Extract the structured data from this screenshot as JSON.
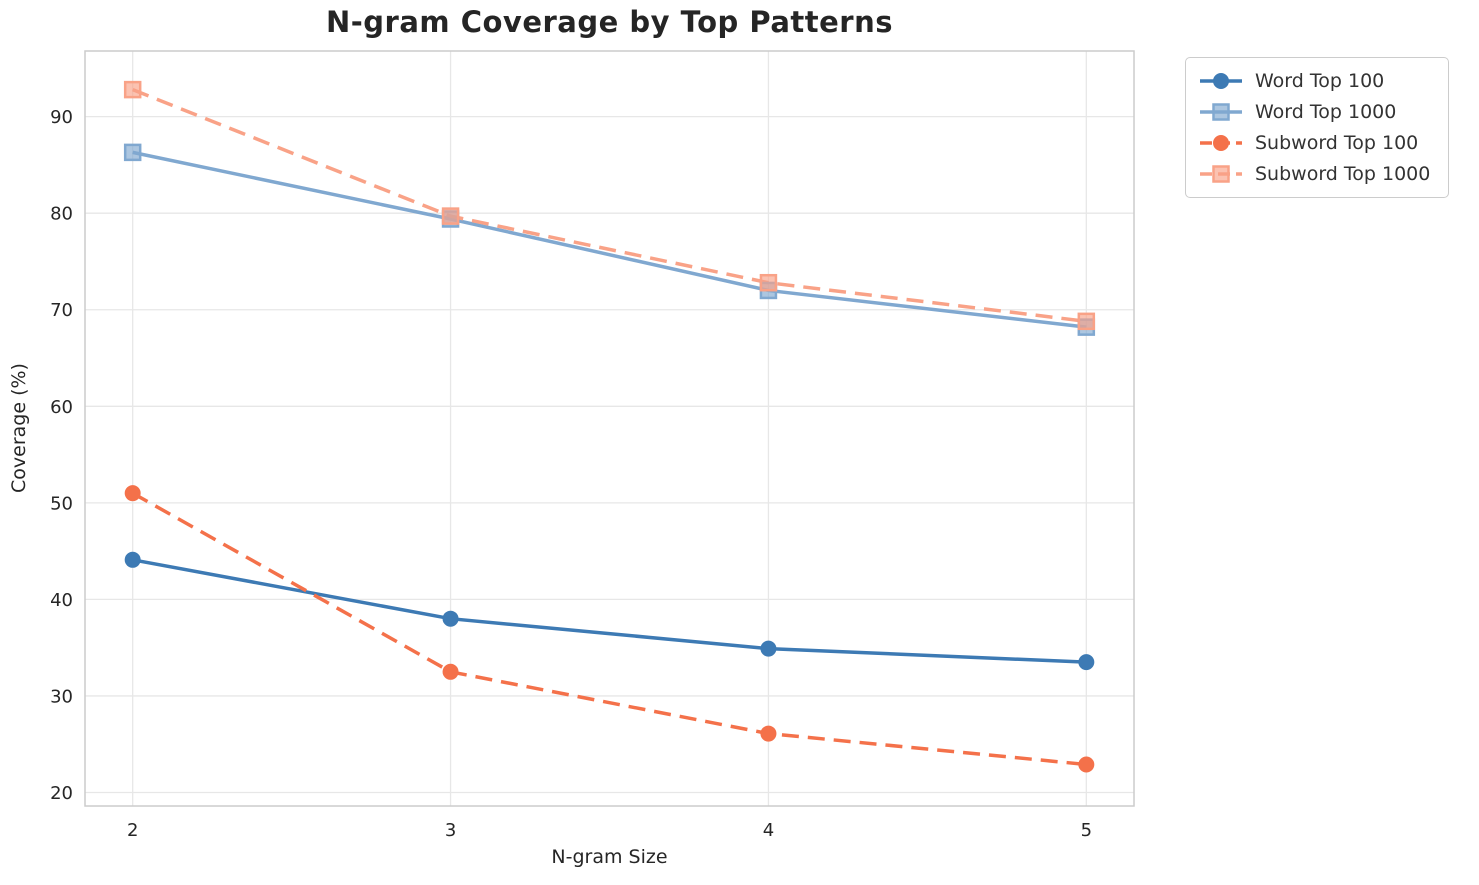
{
  "chart_data": {
    "type": "line",
    "title": "N-gram Coverage by Top Patterns",
    "xlabel": "N-gram Size",
    "ylabel": "Coverage (%)",
    "x": [
      2,
      3,
      4,
      5
    ],
    "xticks": [
      2,
      3,
      4,
      5
    ],
    "yticks": [
      20,
      30,
      40,
      50,
      60,
      70,
      80,
      90
    ],
    "xlim": [
      1.85,
      5.15
    ],
    "ylim": [
      18.6,
      96.8
    ],
    "grid": true,
    "legend_position": "outside-top-right",
    "series": [
      {
        "name": "Word Top 100",
        "values": [
          44.1,
          38.0,
          34.9,
          33.5
        ],
        "color": "#3d7ab4",
        "line_style": "solid",
        "marker": "circle"
      },
      {
        "name": "Word Top 1000",
        "values": [
          86.3,
          79.4,
          72.0,
          68.2
        ],
        "color": "#80a8d0",
        "line_style": "solid",
        "marker": "square"
      },
      {
        "name": "Subword Top 100",
        "values": [
          51.0,
          32.5,
          26.1,
          22.9
        ],
        "color": "#f4714a",
        "line_style": "dashed",
        "marker": "circle"
      },
      {
        "name": "Subword Top 1000",
        "values": [
          92.8,
          79.7,
          72.8,
          68.8
        ],
        "color": "#f9a287",
        "line_style": "dashed",
        "marker": "square"
      }
    ],
    "grid_color": "#e7e7e7",
    "spine_color": "#cccccc",
    "tick_text_color": "#262626",
    "title_color": "#252525",
    "legend_text_color": "#333333"
  }
}
